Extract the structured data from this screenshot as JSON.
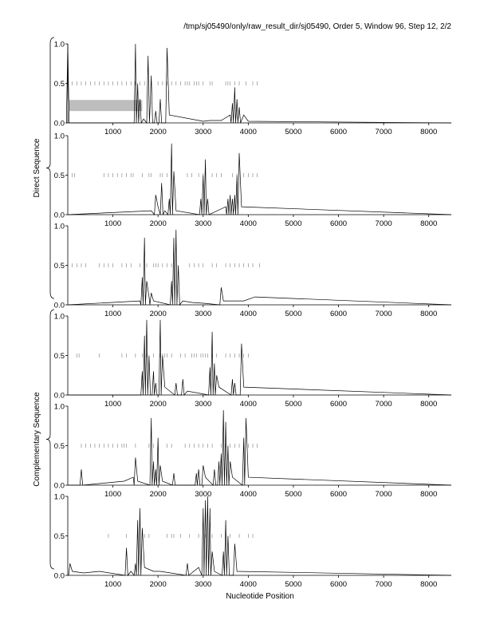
{
  "header": {
    "title": "/tmp/sj05490/only/raw_result_dir/sj05490, Order 5, Window 96, Step 12, 2/2"
  },
  "groups": [
    {
      "label": "Direct Sequence",
      "panels": [
        0,
        1,
        2
      ]
    },
    {
      "label": "Complementary Sequence",
      "panels": [
        3,
        4,
        5
      ]
    }
  ],
  "chart_data": {
    "type": "line",
    "xlabel": "Nucleotide Position",
    "xlim": [
      0,
      8500
    ],
    "ylim": [
      0,
      1
    ],
    "x_ticks": [
      1000,
      2000,
      3000,
      4000,
      5000,
      6000,
      7000,
      8000
    ],
    "y_ticks": [
      0.0,
      0.5,
      1.0
    ],
    "panels": [
      {
        "frame": "Direct frame 1",
        "peaks": [
          [
            0,
            1.0
          ],
          [
            1500,
            1.0
          ],
          [
            1550,
            0.5
          ],
          [
            1600,
            0.3
          ],
          [
            1680,
            0.05
          ],
          [
            1780,
            0.85
          ],
          [
            1850,
            0.6
          ],
          [
            1950,
            0.15
          ],
          [
            2050,
            0.3
          ],
          [
            2200,
            0.95
          ],
          [
            2250,
            0.1
          ],
          [
            3000,
            0.02
          ],
          [
            3150,
            0.03
          ],
          [
            3400,
            0.03
          ],
          [
            3600,
            0.1
          ],
          [
            3650,
            0.25
          ],
          [
            3700,
            0.45
          ],
          [
            3750,
            0.3
          ],
          [
            3800,
            0.2
          ],
          [
            3900,
            0.1
          ],
          [
            4000,
            0.02
          ]
        ],
        "marks": [
          100,
          200,
          300,
          400,
          500,
          600,
          700,
          800,
          900,
          1000,
          1100,
          1200,
          1300,
          1400,
          1500,
          1600,
          1700,
          2000,
          2100,
          2200,
          2300,
          2400,
          2500,
          2600,
          2650,
          2700,
          2800,
          2850,
          2900,
          3000,
          3150,
          3200,
          3500,
          3550,
          3600,
          3700,
          3800,
          3950,
          4100,
          4200
        ],
        "rect": [
          0,
          1650,
          0.15,
          0.29
        ]
      },
      {
        "frame": "Direct frame 2",
        "peaks": [
          [
            1850,
            0.05
          ],
          [
            1950,
            0.25
          ],
          [
            2000,
            0.1
          ],
          [
            2080,
            0.4
          ],
          [
            2150,
            0.05
          ],
          [
            2250,
            0.2
          ],
          [
            2300,
            0.9
          ],
          [
            2350,
            0.55
          ],
          [
            2400,
            0.05
          ],
          [
            2950,
            0.2
          ],
          [
            3000,
            0.5
          ],
          [
            3050,
            0.7
          ],
          [
            3100,
            0.2
          ],
          [
            3500,
            0.1
          ],
          [
            3550,
            0.2
          ],
          [
            3600,
            0.25
          ],
          [
            3650,
            0.2
          ],
          [
            3700,
            0.25
          ],
          [
            3750,
            0.5
          ],
          [
            3800,
            0.78
          ],
          [
            3850,
            0.1
          ]
        ],
        "marks": [
          100,
          150,
          800,
          900,
          1000,
          1100,
          1200,
          1300,
          1400,
          1450,
          1650,
          1800,
          1850,
          2050,
          2100,
          2200,
          2650,
          2750,
          2900,
          3000,
          3200,
          3300,
          3400,
          3650,
          3750,
          3900,
          4000,
          4100,
          4200
        ],
        "rect": null
      },
      {
        "frame": "Direct frame 3",
        "peaks": [
          [
            1600,
            0.05
          ],
          [
            1650,
            0.35
          ],
          [
            1700,
            0.85
          ],
          [
            1750,
            0.3
          ],
          [
            1800,
            0.1
          ],
          [
            1850,
            0.15
          ],
          [
            1900,
            0.05
          ],
          [
            2300,
            0.3
          ],
          [
            2350,
            0.85
          ],
          [
            2400,
            0.95
          ],
          [
            2450,
            0.5
          ],
          [
            2550,
            0.05
          ],
          [
            2750,
            0.03
          ],
          [
            3000,
            0.02
          ],
          [
            3400,
            0.22
          ],
          [
            3450,
            0.05
          ],
          [
            3900,
            0.05
          ],
          [
            4150,
            0.1
          ]
        ],
        "marks": [
          100,
          200,
          300,
          400,
          700,
          800,
          900,
          1000,
          1200,
          1300,
          1400,
          1600,
          1750,
          1900,
          1950,
          2000,
          2100,
          2200,
          2300,
          2700,
          2800,
          2900,
          3000,
          3200,
          3300,
          3500,
          3600,
          3700,
          3800,
          3900,
          4000,
          4100,
          4250
        ],
        "rect": null
      },
      {
        "frame": "Complementary frame 1",
        "peaks": [
          [
            1650,
            0.3
          ],
          [
            1700,
            0.75
          ],
          [
            1750,
            0.95
          ],
          [
            1800,
            0.5
          ],
          [
            1900,
            0.3
          ],
          [
            1950,
            0.15
          ],
          [
            2050,
            0.95
          ],
          [
            2100,
            0.5
          ],
          [
            2150,
            0.1
          ],
          [
            2400,
            0.15
          ],
          [
            2550,
            0.2
          ],
          [
            2650,
            0.05
          ],
          [
            3150,
            0.35
          ],
          [
            3200,
            0.8
          ],
          [
            3250,
            0.4
          ],
          [
            3300,
            0.25
          ],
          [
            3350,
            0.1
          ],
          [
            3650,
            0.2
          ],
          [
            3700,
            0.15
          ],
          [
            3850,
            0.65
          ],
          [
            3900,
            0.1
          ]
        ],
        "marks": [
          200,
          250,
          700,
          1200,
          1300,
          1500,
          1650,
          1750,
          1900,
          2050,
          2100,
          2150,
          2200,
          2300,
          2500,
          2600,
          2750,
          2800,
          2850,
          2950,
          3000,
          3050,
          3100,
          3200,
          3300,
          3500,
          3600,
          3700,
          3800,
          3900,
          4000
        ],
        "rect": null
      },
      {
        "frame": "Complementary frame 2",
        "peaks": [
          [
            300,
            0.2
          ],
          [
            1250,
            0.05
          ],
          [
            1450,
            0.1
          ],
          [
            1500,
            0.35
          ],
          [
            1550,
            0.05
          ],
          [
            1850,
            0.85
          ],
          [
            1900,
            0.3
          ],
          [
            1950,
            0.2
          ],
          [
            2000,
            0.6
          ],
          [
            2050,
            0.25
          ],
          [
            2100,
            0.05
          ],
          [
            2350,
            0.15
          ],
          [
            2850,
            0.15
          ],
          [
            2900,
            0.2
          ],
          [
            3000,
            0.25
          ],
          [
            3050,
            0.1
          ],
          [
            3250,
            0.2
          ],
          [
            3350,
            0.3
          ],
          [
            3400,
            0.4
          ],
          [
            3450,
            0.95
          ],
          [
            3500,
            0.8
          ],
          [
            3550,
            0.5
          ],
          [
            3600,
            0.3
          ],
          [
            3650,
            0.1
          ],
          [
            3900,
            0.6
          ],
          [
            3950,
            0.85
          ],
          [
            4000,
            0.1
          ]
        ],
        "marks": [
          300,
          400,
          500,
          600,
          700,
          800,
          900,
          1000,
          1100,
          1200,
          1250,
          1300,
          1500,
          1800,
          1900,
          2000,
          2200,
          2300,
          2600,
          2700,
          2800,
          2900,
          3000,
          3100,
          3200,
          3400,
          3500,
          3600,
          3700,
          3800,
          3900,
          4000,
          4100,
          4200
        ],
        "rect": null
      },
      {
        "frame": "Complementary frame 3",
        "peaks": [
          [
            50,
            0.15
          ],
          [
            100,
            0.05
          ],
          [
            350,
            0.03
          ],
          [
            700,
            0.05
          ],
          [
            1300,
            0.35
          ],
          [
            1400,
            0.05
          ],
          [
            1500,
            0.15
          ],
          [
            1550,
            0.7
          ],
          [
            1600,
            0.85
          ],
          [
            1650,
            0.6
          ],
          [
            1700,
            0.1
          ],
          [
            1900,
            0.05
          ],
          [
            2050,
            0.05
          ],
          [
            2650,
            0.15
          ],
          [
            2900,
            0.1
          ],
          [
            3000,
            0.85
          ],
          [
            3050,
            0.95
          ],
          [
            3100,
            1.0
          ],
          [
            3150,
            0.85
          ],
          [
            3200,
            0.3
          ],
          [
            3250,
            0.05
          ],
          [
            3450,
            0.3
          ],
          [
            3500,
            0.7
          ],
          [
            3550,
            0.5
          ],
          [
            3700,
            0.4
          ],
          [
            3750,
            0.05
          ]
        ],
        "marks": [
          900,
          1300,
          1550,
          1700,
          1800,
          2200,
          2300,
          2350,
          2500,
          2700,
          2900,
          3050,
          3200,
          3400,
          3500,
          3600,
          3800,
          4000,
          4100
        ],
        "rect": null
      }
    ]
  }
}
